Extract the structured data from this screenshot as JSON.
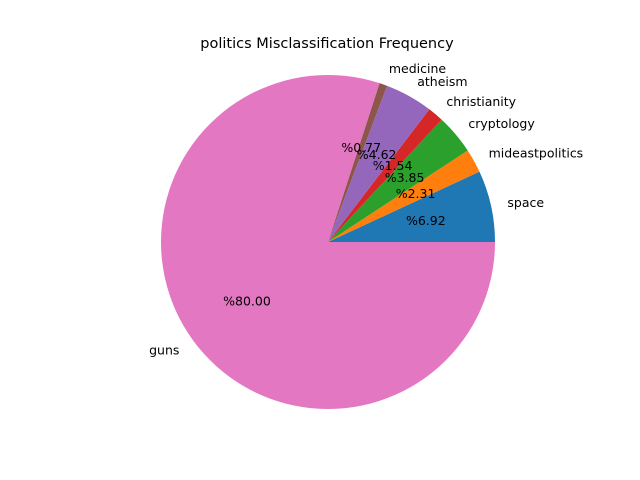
{
  "chart_data": {
    "type": "pie",
    "title": "politics Misclassification Frequency",
    "categories": [
      "space",
      "mideastpolitics",
      "cryptology",
      "christianity",
      "atheism",
      "medicine",
      "guns"
    ],
    "values": [
      6.92,
      2.31,
      3.85,
      1.54,
      4.62,
      0.77,
      80.0
    ],
    "value_labels": [
      "%6.92",
      "%2.31",
      "%3.85",
      "%1.54",
      "%4.62",
      "%0.77",
      "%80.00"
    ],
    "colors": [
      "#1f77b4",
      "#ff7f0e",
      "#2ca02c",
      "#d62728",
      "#9467bd",
      "#8c564b",
      "#e377c2"
    ],
    "start_angle_deg": 0,
    "direction": "counterclockwise",
    "legend": "none"
  }
}
